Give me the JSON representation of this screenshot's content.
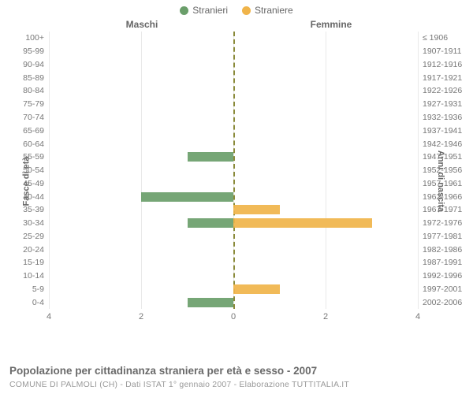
{
  "legend": {
    "male": {
      "label": "Stranieri",
      "color": "#6a9e6a"
    },
    "female": {
      "label": "Straniere",
      "color": "#f0b44a"
    }
  },
  "column_headers": {
    "left": "Maschi",
    "right": "Femmine"
  },
  "axis_titles": {
    "left": "Fasce di età",
    "right": "Anni di nascita"
  },
  "x": {
    "max": 4,
    "ticks_left": [
      4,
      2,
      0
    ],
    "ticks_right": [
      0,
      2,
      4
    ]
  },
  "grid_color": "#e9e9e9",
  "center_line_color": "#8a8a3a",
  "rows": [
    {
      "age": "100+",
      "birth": "≤ 1906",
      "m": 0,
      "f": 0
    },
    {
      "age": "95-99",
      "birth": "1907-1911",
      "m": 0,
      "f": 0
    },
    {
      "age": "90-94",
      "birth": "1912-1916",
      "m": 0,
      "f": 0
    },
    {
      "age": "85-89",
      "birth": "1917-1921",
      "m": 0,
      "f": 0
    },
    {
      "age": "80-84",
      "birth": "1922-1926",
      "m": 0,
      "f": 0
    },
    {
      "age": "75-79",
      "birth": "1927-1931",
      "m": 0,
      "f": 0
    },
    {
      "age": "70-74",
      "birth": "1932-1936",
      "m": 0,
      "f": 0
    },
    {
      "age": "65-69",
      "birth": "1937-1941",
      "m": 0,
      "f": 0
    },
    {
      "age": "60-64",
      "birth": "1942-1946",
      "m": 0,
      "f": 0
    },
    {
      "age": "55-59",
      "birth": "1947-1951",
      "m": 1,
      "f": 0
    },
    {
      "age": "50-54",
      "birth": "1952-1956",
      "m": 0,
      "f": 0
    },
    {
      "age": "45-49",
      "birth": "1957-1961",
      "m": 0,
      "f": 0
    },
    {
      "age": "40-44",
      "birth": "1962-1966",
      "m": 2,
      "f": 0
    },
    {
      "age": "35-39",
      "birth": "1967-1971",
      "m": 0,
      "f": 1
    },
    {
      "age": "30-34",
      "birth": "1972-1976",
      "m": 1,
      "f": 3
    },
    {
      "age": "25-29",
      "birth": "1977-1981",
      "m": 0,
      "f": 0
    },
    {
      "age": "20-24",
      "birth": "1982-1986",
      "m": 0,
      "f": 0
    },
    {
      "age": "15-19",
      "birth": "1987-1991",
      "m": 0,
      "f": 0
    },
    {
      "age": "10-14",
      "birth": "1992-1996",
      "m": 0,
      "f": 0
    },
    {
      "age": "5-9",
      "birth": "1997-2001",
      "m": 0,
      "f": 1
    },
    {
      "age": "0-4",
      "birth": "2002-2006",
      "m": 1,
      "f": 0
    }
  ],
  "caption": "Popolazione per cittadinanza straniera per età e sesso - 2007",
  "subcaption": "COMUNE DI PALMOLI (CH) - Dati ISTAT 1° gennaio 2007 - Elaborazione TUTTITALIA.IT"
}
